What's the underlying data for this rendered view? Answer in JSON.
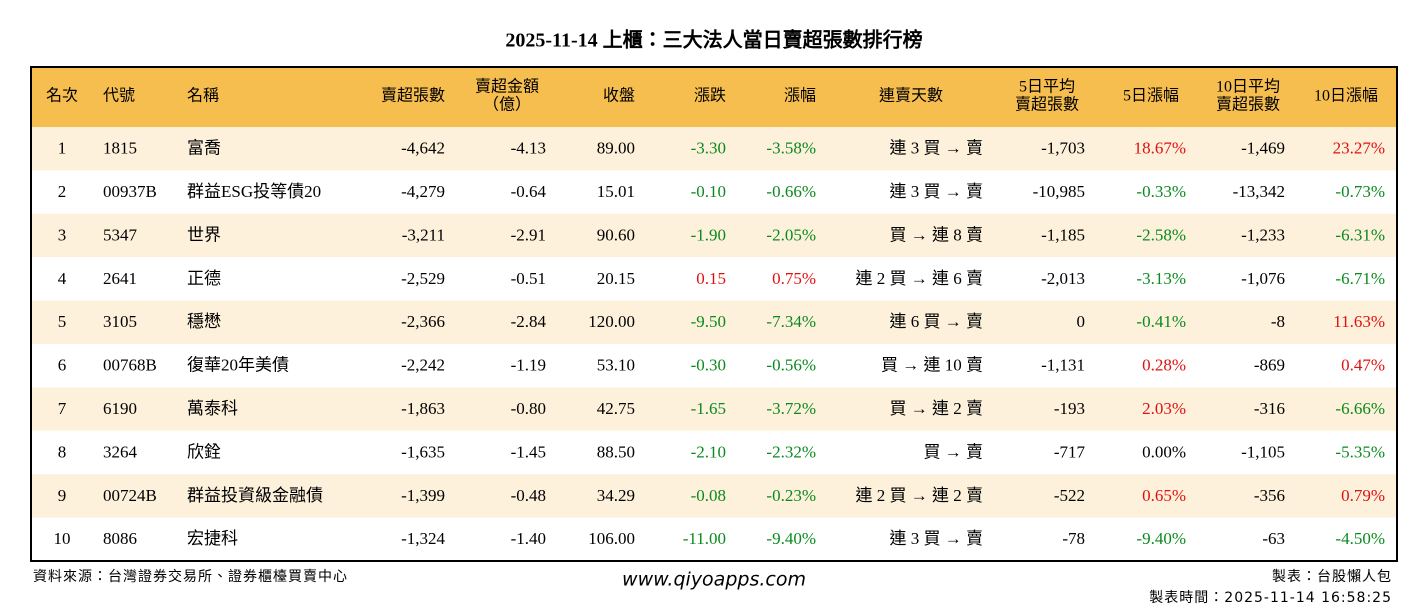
{
  "title": "2025-11-14 上櫃：三大法人當日賣超張數排行榜",
  "table": {
    "headers": [
      [
        "名次"
      ],
      [
        "代號"
      ],
      [
        "名稱"
      ],
      [
        "賣超張數"
      ],
      [
        "賣超金額",
        "（億）"
      ],
      [
        "收盤"
      ],
      [
        "漲跌"
      ],
      [
        "漲幅"
      ],
      [
        "連賣天數"
      ],
      [
        "5日平均",
        "賣超張數"
      ],
      [
        "5日漲幅"
      ],
      [
        "10日平均",
        "賣超張數"
      ],
      [
        "10日漲幅"
      ]
    ],
    "rows": [
      [
        "1",
        "1815",
        "富喬",
        "-4,642",
        "-4.13",
        "89.00",
        "-3.30",
        "-3.58%",
        "連 3 買 → 賣",
        "-1,703",
        "18.67%",
        "-1,469",
        "23.27%"
      ],
      [
        "2",
        "00937B",
        "群益ESG投等債20",
        "-4,279",
        "-0.64",
        "15.01",
        "-0.10",
        "-0.66%",
        "連 3 買 → 賣",
        "-10,985",
        "-0.33%",
        "-13,342",
        "-0.73%"
      ],
      [
        "3",
        "5347",
        "世界",
        "-3,211",
        "-2.91",
        "90.60",
        "-1.90",
        "-2.05%",
        "買 → 連 8 賣",
        "-1,185",
        "-2.58%",
        "-1,233",
        "-6.31%"
      ],
      [
        "4",
        "2641",
        "正德",
        "-2,529",
        "-0.51",
        "20.15",
        "0.15",
        "0.75%",
        "連 2 買 → 連 6 賣",
        "-2,013",
        "-3.13%",
        "-1,076",
        "-6.71%"
      ],
      [
        "5",
        "3105",
        "穩懋",
        "-2,366",
        "-2.84",
        "120.00",
        "-9.50",
        "-7.34%",
        "連 6 買 → 賣",
        "0",
        "-0.41%",
        "-8",
        "11.63%"
      ],
      [
        "6",
        "00768B",
        "復華20年美債",
        "-2,242",
        "-1.19",
        "53.10",
        "-0.30",
        "-0.56%",
        "買 → 連 10 賣",
        "-1,131",
        "0.28%",
        "-869",
        "0.47%"
      ],
      [
        "7",
        "6190",
        "萬泰科",
        "-1,863",
        "-0.80",
        "42.75",
        "-1.65",
        "-3.72%",
        "買 → 連 2 賣",
        "-193",
        "2.03%",
        "-316",
        "-6.66%"
      ],
      [
        "8",
        "3264",
        "欣銓",
        "-1,635",
        "-1.45",
        "88.50",
        "-2.10",
        "-2.32%",
        "買 → 賣",
        "-717",
        "0.00%",
        "-1,105",
        "-5.35%"
      ],
      [
        "9",
        "00724B",
        "群益投資級金融債",
        "-1,399",
        "-0.48",
        "34.29",
        "-0.08",
        "-0.23%",
        "連 2 買 → 連 2 賣",
        "-522",
        "0.65%",
        "-356",
        "0.79%"
      ],
      [
        "10",
        "8086",
        "宏捷科",
        "-1,324",
        "-1.40",
        "106.00",
        "-11.00",
        "-9.40%",
        "連 3 買 → 賣",
        "-78",
        "-9.40%",
        "-63",
        "-4.50%"
      ]
    ]
  },
  "footer": {
    "source": "資料來源：台灣證券交易所、證券櫃檯買賣中心",
    "website": "www.qiyoapps.com",
    "maker": "製表：台股懶人包",
    "time": "製表時間：2025-11-14 16:58:25"
  }
}
